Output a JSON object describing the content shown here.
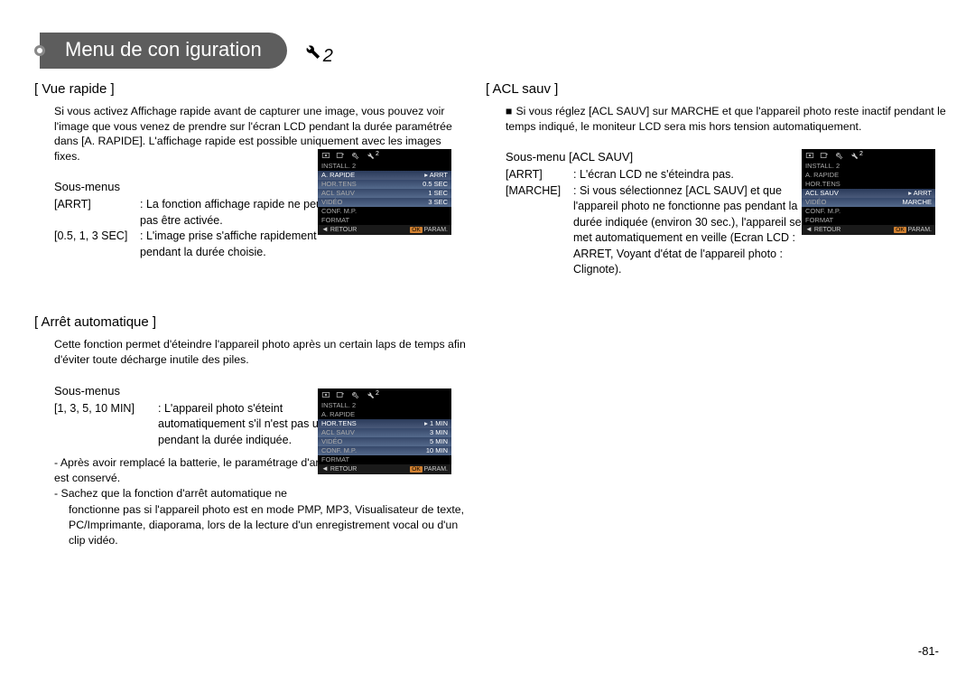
{
  "page": {
    "title": "Menu de con  iguration",
    "wrench_sub": "2",
    "page_number": "-81-"
  },
  "sections": {
    "vue_rapide": {
      "title": "[ Vue rapide ]",
      "desc": "Si vous activez Affichage rapide avant de capturer une image, vous pouvez voir l'image que vous venez de prendre sur l'écran LCD pendant la durée paramétrée dans [A. RAPIDE]. L'affichage rapide est possible uniquement avec les images fixes.",
      "sub_label": "Sous-menus",
      "defs": [
        {
          "term": "[ARRT]",
          "desc": ": La fonction affichage rapide ne peut pas être activée."
        },
        {
          "term": "[0.5, 1, 3 SEC]",
          "desc": ": L'image prise s'affiche rapidement pendant la durée choisie."
        }
      ]
    },
    "arret_auto": {
      "title": "[ Arrêt automatique ]",
      "desc": "Cette fonction permet d'éteindre l'appareil photo après un certain laps de temps afin d'éviter toute décharge inutile des piles.",
      "sub_label": "Sous-menus",
      "defs": [
        {
          "term": "[1, 3, 5, 10 MIN]",
          "desc": ": L'appareil photo s'éteint automatiquement s'il n'est pas utilisé pendant la durée indiquée."
        }
      ],
      "note1": "- Après avoir remplacé la batterie, le paramétrage d'arrêt est conservé.",
      "note2a": "- Sachez que la fonction d'arrêt automatique ne",
      "note2b": "fonctionne pas si l'appareil photo est en mode PMP, MP3, Visualisateur de texte, PC/Imprimante, diaporama, lors de la lecture d'un enregistrement vocal ou d'un clip vidéo."
    },
    "acl_sauv": {
      "title": "[ ACL sauv ]",
      "bullet": "■",
      "desc": "Si vous réglez [ACL SAUV] sur MARCHE et que l'appareil photo reste inactif pendant le temps indiqué, le moniteur LCD sera mis hors tension automatiquement.",
      "sub_label": "Sous-menu [ACL SAUV]",
      "defs": [
        {
          "term": "[ARRT]",
          "desc": ": L'écran LCD ne s'éteindra pas."
        },
        {
          "term": "[MARCHE]",
          "desc": ": Si vous sélectionnez [ACL SAUV] et que l'appareil photo ne fonctionne pas pendant la durée indiquée (environ 30 sec.), l'appareil se met automatiquement en veille (Ecran LCD : ARRET, Voyant d'état de l'appareil photo : Clignote)."
        }
      ]
    }
  },
  "screens": {
    "s1": {
      "install": "INSTALL. 2",
      "items": [
        {
          "l": "A. RAPIDE",
          "r": "ARRT",
          "hl": true
        },
        {
          "l": "HOR.TENS",
          "r": "0.5 SEC",
          "sub": true
        },
        {
          "l": "ACL SAUV",
          "r": "1 SEC",
          "sub": true
        },
        {
          "l": "VIDÉO",
          "r": "3 SEC",
          "sub": true
        },
        {
          "l": "CONF. M.P.",
          "r": ""
        },
        {
          "l": "FORMAT",
          "r": ""
        }
      ],
      "back": "RETOUR",
      "ok": "PARAM."
    },
    "s2": {
      "install": "INSTALL. 2",
      "items": [
        {
          "l": "A. RAPIDE",
          "r": ""
        },
        {
          "l": "HOR.TENS",
          "r": "1 MIN",
          "hl": true
        },
        {
          "l": "ACL SAUV",
          "r": "3 MIN",
          "sub": true
        },
        {
          "l": "VIDÉO",
          "r": "5 MIN",
          "sub": true
        },
        {
          "l": "CONF. M.P.",
          "r": "10 MIN",
          "sub": true
        },
        {
          "l": "FORMAT",
          "r": ""
        }
      ],
      "back": "RETOUR",
      "ok": "PARAM."
    },
    "s3": {
      "install": "INSTALL. 2",
      "items": [
        {
          "l": "A. RAPIDE",
          "r": ""
        },
        {
          "l": "HOR.TENS",
          "r": ""
        },
        {
          "l": "ACL SAUV",
          "r": "ARRT",
          "hl": true
        },
        {
          "l": "VIDÉO",
          "r": "MARCHE",
          "sub": true
        },
        {
          "l": "CONF. M.P.",
          "r": ""
        },
        {
          "l": "FORMAT",
          "r": ""
        }
      ],
      "back": "RETOUR",
      "ok": "PARAM."
    }
  }
}
